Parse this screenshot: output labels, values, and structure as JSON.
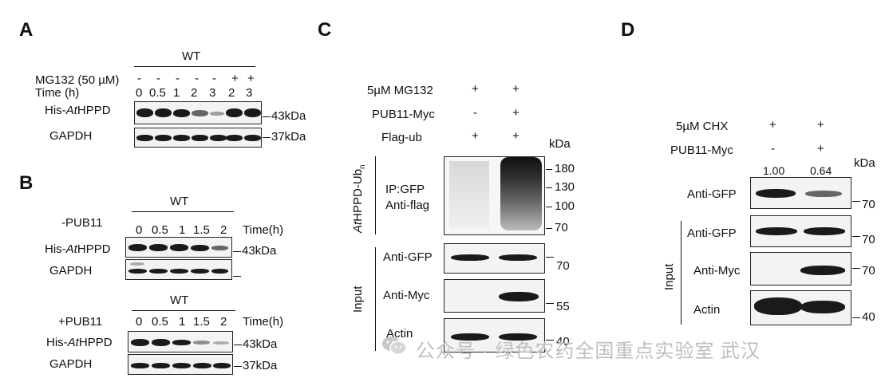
{
  "panels": {
    "A": {
      "letter": "A",
      "wt": "WT",
      "mg132_label": "MG132 (50 µM)",
      "mg132_vals": [
        "-",
        "-",
        "-",
        "-",
        "-",
        "+",
        "+"
      ],
      "time_label": "Time (h)",
      "time_vals": [
        "0",
        "0.5",
        "1",
        "2",
        "3",
        "2",
        "3"
      ],
      "row1_label_pre": "His-",
      "row1_label_it": "At",
      "row1_label_post": "HPPD",
      "row1_mw": "43kDa",
      "row2_label": "GAPDH",
      "row2_mw": "37kDa"
    },
    "B": {
      "letter": "B",
      "top": {
        "wt": "WT",
        "cond": "-PUB11",
        "time_vals": [
          "0",
          "0.5",
          "1",
          "1.5",
          "2"
        ],
        "time_label": "Time(h)",
        "row1_label_pre": "His-",
        "row1_label_it": "At",
        "row1_label_post": "HPPD",
        "row1_mw": "43kDa",
        "row2_label": "GAPDH"
      },
      "bottom": {
        "wt": "WT",
        "cond": "+PUB11",
        "time_vals": [
          "0",
          "0.5",
          "1",
          "1.5",
          "2"
        ],
        "time_label": "Time(h)",
        "row1_label_pre": "His-",
        "row1_label_it": "At",
        "row1_label_post": "HPPD",
        "row1_mw": "43kDa",
        "row2_label": "GAPDH",
        "row2_mw": "37kDa"
      }
    },
    "C": {
      "letter": "C",
      "cond1": "5µM MG132",
      "cond1_vals": [
        "+",
        "+"
      ],
      "cond2": "PUB11-Myc",
      "cond2_vals": [
        "-",
        "+"
      ],
      "cond3": "Flag-ub",
      "cond3_vals": [
        "+",
        "+"
      ],
      "kda": "kDa",
      "vertical_label": "AtHPPD-Ub",
      "vertical_sub": "n",
      "ip_label1": "IP:GFP",
      "ip_label2": "Anti-flag",
      "ip_markers": [
        "180",
        "130",
        "100",
        "70"
      ],
      "input_label": "Input",
      "rows": [
        {
          "label": "Anti-GFP",
          "marker": "70"
        },
        {
          "label": "Anti-Myc",
          "marker": "55"
        },
        {
          "label": "Actin",
          "marker": "40"
        }
      ]
    },
    "D": {
      "letter": "D",
      "cond1": "5µM CHX",
      "cond1_vals": [
        "+",
        "+"
      ],
      "cond2": "PUB11-Myc",
      "cond2_vals": [
        "-",
        "+"
      ],
      "kda": "kDa",
      "quant": [
        "1.00",
        "0.64"
      ],
      "top_row": {
        "label": "Anti-GFP",
        "marker": "70"
      },
      "input_label": "Input",
      "rows": [
        {
          "label": "Anti-GFP",
          "marker": "70"
        },
        {
          "label": "Anti-Myc",
          "marker": "70"
        },
        {
          "label": "Actin",
          "marker": "40"
        }
      ]
    }
  },
  "watermark": "公众号 · 绿色农药全国重点实验室 武汉"
}
